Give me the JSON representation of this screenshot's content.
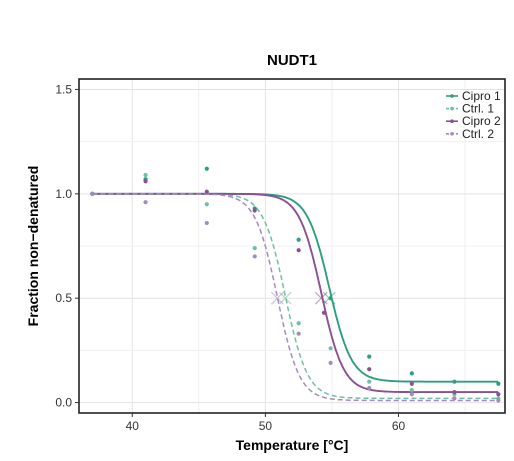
{
  "chart_data": {
    "type": "scatter",
    "title": "NUDT1",
    "xlabel": "Temperature [°C]",
    "ylabel": "Fraction non−denatured",
    "xlim": [
      36,
      68
    ],
    "ylim": [
      -0.05,
      1.55
    ],
    "x_ticks": [
      40,
      50,
      60
    ],
    "y_ticks": [
      0.0,
      0.5,
      1.0,
      1.5
    ],
    "y_tick_labels": [
      "0.0",
      "0.5",
      "1.0",
      "1.5"
    ],
    "grid": true,
    "legend_position": "top-right",
    "series": [
      {
        "name": "Cipro 1",
        "color": "#2e9e80",
        "dash": "solid",
        "tm": 54.8,
        "slope": 1.2,
        "bottom": 0.1,
        "points": [
          [
            37,
            1.0
          ],
          [
            41,
            1.07
          ],
          [
            45.6,
            1.12
          ],
          [
            49.2,
            0.93
          ],
          [
            52.5,
            0.78
          ],
          [
            54.9,
            0.5
          ],
          [
            57.8,
            0.22
          ],
          [
            61,
            0.14
          ],
          [
            64.2,
            0.1
          ],
          [
            67.5,
            0.09
          ]
        ]
      },
      {
        "name": "Ctrl. 1",
        "color": "#6fbfa6",
        "dash": "dashed",
        "tm": 51.5,
        "slope": 1.2,
        "bottom": 0.02,
        "points": [
          [
            37,
            1.0
          ],
          [
            41,
            1.09
          ],
          [
            45.6,
            0.95
          ],
          [
            49.2,
            0.74
          ],
          [
            52.5,
            0.38
          ],
          [
            54.9,
            0.26
          ],
          [
            57.8,
            0.1
          ],
          [
            61,
            0.06
          ],
          [
            64.2,
            0.04
          ],
          [
            67.5,
            0.02
          ]
        ]
      },
      {
        "name": "Cipro 2",
        "color": "#8b4f93",
        "dash": "solid",
        "tm": 54.2,
        "slope": 1.2,
        "bottom": 0.05,
        "points": [
          [
            37,
            1.0
          ],
          [
            41,
            1.06
          ],
          [
            45.6,
            1.01
          ],
          [
            49.2,
            0.92
          ],
          [
            52.5,
            0.73
          ],
          [
            54.4,
            0.43
          ],
          [
            57.8,
            0.16
          ],
          [
            61,
            0.09
          ],
          [
            64.2,
            0.05
          ],
          [
            67.5,
            0.04
          ]
        ]
      },
      {
        "name": "Ctrl. 2",
        "color": "#a58bbd",
        "dash": "dashed",
        "tm": 50.9,
        "slope": 1.2,
        "bottom": 0.01,
        "points": [
          [
            37,
            1.0
          ],
          [
            41,
            0.96
          ],
          [
            45.6,
            0.86
          ],
          [
            49.2,
            0.7
          ],
          [
            52.5,
            0.33
          ],
          [
            54.9,
            0.19
          ],
          [
            57.8,
            0.07
          ],
          [
            61,
            0.04
          ],
          [
            64.2,
            0.02
          ],
          [
            67.5,
            0.01
          ]
        ]
      }
    ],
    "tm_markers": [
      {
        "series": "Cipro 1",
        "x": 54.8,
        "y": 0.5
      },
      {
        "series": "Ctrl. 1",
        "x": 51.5,
        "y": 0.5
      },
      {
        "series": "Cipro 2",
        "x": 54.2,
        "y": 0.5
      },
      {
        "series": "Ctrl. 2",
        "x": 50.9,
        "y": 0.5
      }
    ]
  }
}
